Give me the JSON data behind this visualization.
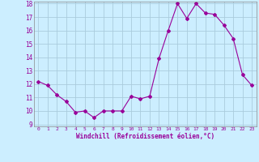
{
  "x": [
    0,
    1,
    2,
    3,
    4,
    5,
    6,
    7,
    8,
    9,
    10,
    11,
    12,
    13,
    14,
    15,
    16,
    17,
    18,
    19,
    20,
    21,
    22,
    23
  ],
  "y": [
    12.2,
    11.9,
    11.2,
    10.7,
    9.9,
    10.0,
    9.5,
    10.0,
    10.0,
    10.0,
    11.1,
    10.9,
    11.1,
    13.9,
    16.0,
    18.0,
    16.9,
    18.0,
    17.3,
    17.2,
    16.4,
    15.4,
    12.7,
    11.9
  ],
  "line_color": "#990099",
  "marker": "D",
  "marker_size": 2.0,
  "bg_color": "#cceeff",
  "grid_color": "#aaccdd",
  "xlabel": "Windchill (Refroidissement éolien,°C)",
  "xlabel_color": "#990099",
  "tick_color": "#990099",
  "ylim": [
    9,
    18
  ],
  "xlim": [
    -0.5,
    23.5
  ],
  "yticks": [
    9,
    10,
    11,
    12,
    13,
    14,
    15,
    16,
    17,
    18
  ],
  "xticks": [
    0,
    1,
    2,
    3,
    4,
    5,
    6,
    7,
    8,
    9,
    10,
    11,
    12,
    13,
    14,
    15,
    16,
    17,
    18,
    19,
    20,
    21,
    22,
    23
  ]
}
